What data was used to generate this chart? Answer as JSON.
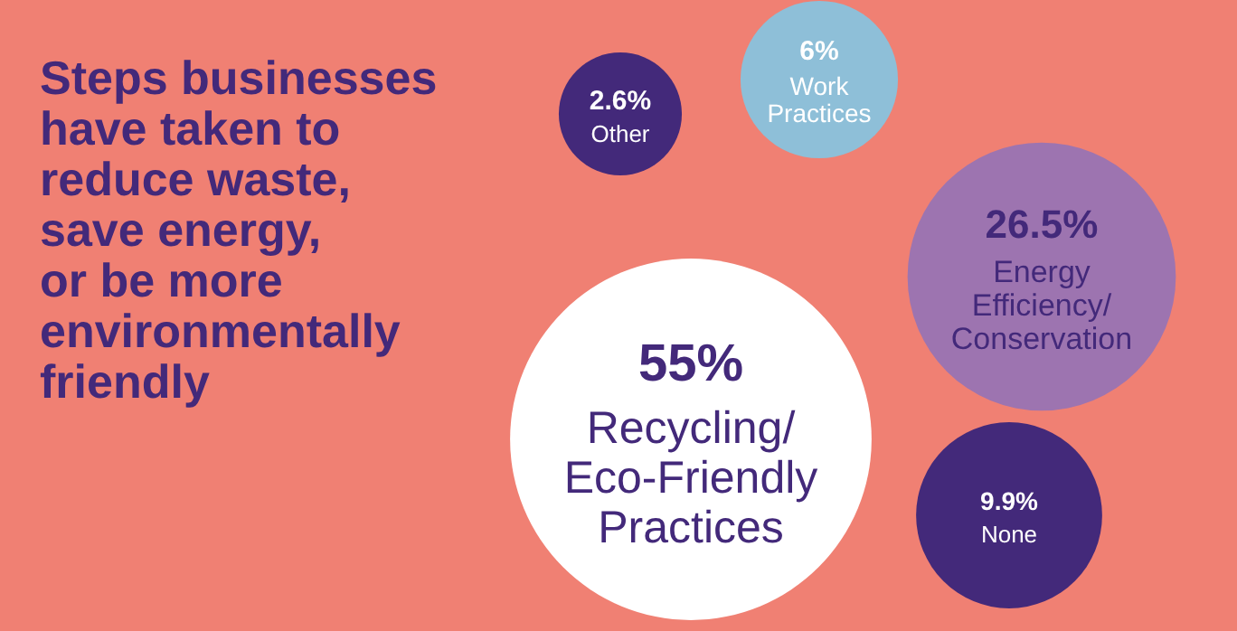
{
  "chart_data": {
    "type": "other",
    "title": "Steps businesses\nhave taken to\nreduce waste,\nsave energy,\nor be more\nenvironmentally\nfriendly",
    "categories": [
      "Other",
      "Work\nPractices",
      "Energy\nEfficiency/\nConservation",
      "Recycling/\nEco-Friendly\nPractices",
      "None"
    ],
    "values": [
      2.6,
      6,
      26.5,
      55,
      9.9
    ],
    "value_labels": [
      "2.6%",
      "6%",
      "26.5%",
      "55%",
      "9.9%"
    ],
    "colors": [
      "#43297a",
      "#8ebfd8",
      "#9d74b0",
      "#ffffff",
      "#43297a"
    ]
  }
}
